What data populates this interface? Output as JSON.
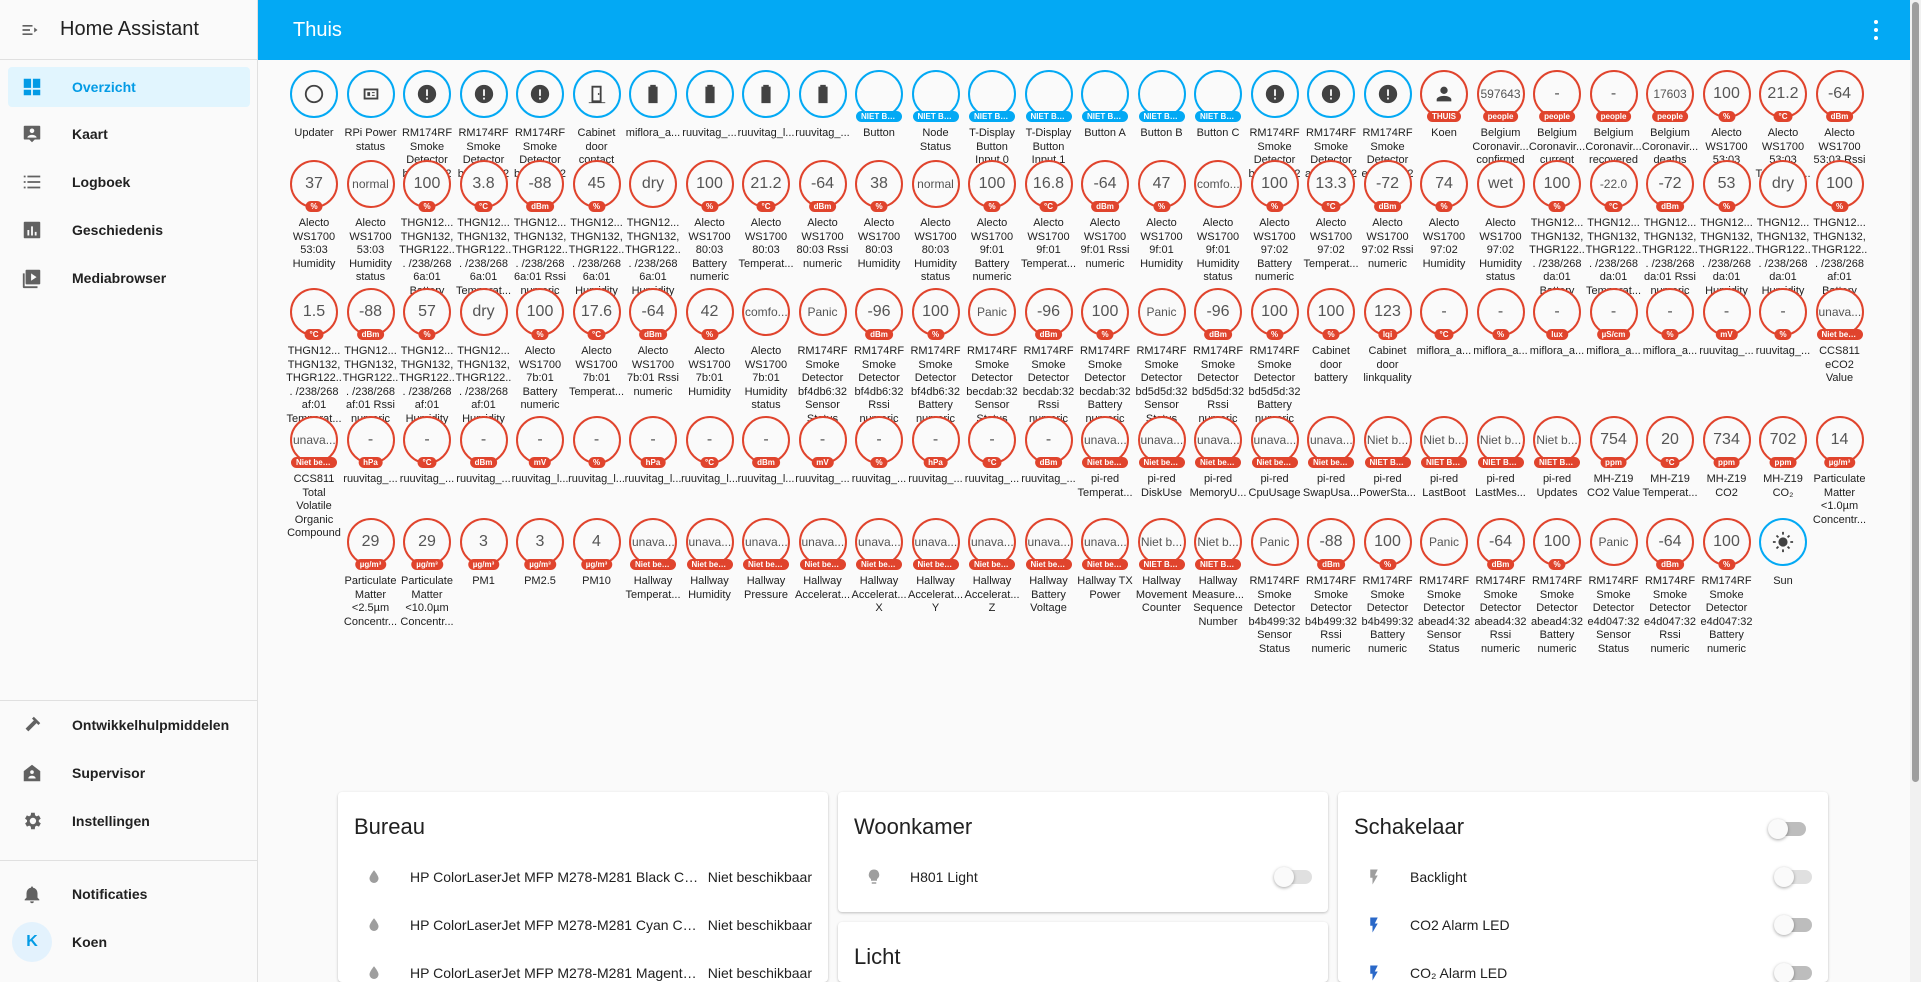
{
  "app": {
    "title": "Home Assistant"
  },
  "topbar": {
    "title": "Thuis"
  },
  "sidebar": {
    "items": [
      {
        "label": "Overzicht",
        "icon": "dashboard-icon"
      },
      {
        "label": "Kaart",
        "icon": "map-icon"
      },
      {
        "label": "Logboek",
        "icon": "logbook-icon"
      },
      {
        "label": "Geschiedenis",
        "icon": "history-chart-icon"
      },
      {
        "label": "Mediabrowser",
        "icon": "media-icon"
      }
    ],
    "bottom_items": [
      {
        "label": "Ontwikkelhulpmiddelen",
        "icon": "hammer-icon"
      },
      {
        "label": "Supervisor",
        "icon": "supervisor-icon"
      },
      {
        "label": "Instellingen",
        "icon": "gear-icon"
      }
    ],
    "notifications": "Notificaties",
    "user": {
      "name": "Koen",
      "initial": "K"
    }
  },
  "badges": [
    [
      {
        "v": "",
        "icon": "circle",
        "tag": "",
        "name": "Updater",
        "c": "blue"
      },
      {
        "v": "",
        "icon": "chip",
        "tag": "",
        "name": "RPi Power status",
        "c": "blue"
      },
      {
        "v": "",
        "icon": "alert",
        "tag": "",
        "name": "RM174RF Smoke Detector bf4db6:32",
        "c": "blue"
      },
      {
        "v": "",
        "icon": "alert",
        "tag": "",
        "name": "RM174RF Smoke Detector becdab:32",
        "c": "blue"
      },
      {
        "v": "",
        "icon": "alert",
        "tag": "",
        "name": "RM174RF Smoke Detector bd5d5d:32",
        "c": "blue"
      },
      {
        "v": "",
        "icon": "door",
        "tag": "",
        "name": "Cabinet door contact",
        "c": "blue"
      },
      {
        "v": "",
        "icon": "battery",
        "tag": "",
        "name": "miflora_a...",
        "c": "blue"
      },
      {
        "v": "",
        "icon": "battery",
        "tag": "",
        "name": "ruuvitag_...",
        "c": "blue"
      },
      {
        "v": "",
        "icon": "battery",
        "tag": "",
        "name": "ruuvitag_l...",
        "c": "blue"
      },
      {
        "v": "",
        "icon": "battery",
        "tag": "",
        "name": "ruuvitag_...",
        "c": "blue"
      },
      {
        "v": "",
        "icon": "",
        "tag": "NIET BE...",
        "name": "Button",
        "c": "blue"
      },
      {
        "v": "",
        "icon": "",
        "tag": "NIET BE...",
        "name": "Node Status",
        "c": "blue"
      },
      {
        "v": "",
        "icon": "",
        "tag": "NIET BE...",
        "name": "T-Display Button Input 0",
        "c": "blue"
      },
      {
        "v": "",
        "icon": "",
        "tag": "NIET BE...",
        "name": "T-Display Button Input 1",
        "c": "blue"
      },
      {
        "v": "",
        "icon": "",
        "tag": "NIET BE...",
        "name": "Button A",
        "c": "blue"
      },
      {
        "v": "",
        "icon": "",
        "tag": "NIET BE...",
        "name": "Button B",
        "c": "blue"
      },
      {
        "v": "",
        "icon": "",
        "tag": "NIET BE...",
        "name": "Button C",
        "c": "blue"
      },
      {
        "v": "",
        "icon": "alert",
        "tag": "",
        "name": "RM174RF Smoke Detector b4b499:32",
        "c": "blue"
      },
      {
        "v": "",
        "icon": "alert",
        "tag": "",
        "name": "RM174RF Smoke Detector abead4:32",
        "c": "blue"
      },
      {
        "v": "",
        "icon": "alert",
        "tag": "",
        "name": "RM174RF Smoke Detector e4d047:32",
        "c": "blue"
      },
      {
        "v": "",
        "icon": "person",
        "tag": "THUIS",
        "name": "Koen",
        "c": "red"
      },
      {
        "v": "597643",
        "icon": "",
        "tag": "people",
        "name": "Belgium Coronavir... confirmed",
        "c": "red",
        "sm": true
      },
      {
        "v": "-",
        "icon": "",
        "tag": "people",
        "name": "Belgium Coronavir... current",
        "c": "red"
      },
      {
        "v": "-",
        "icon": "",
        "tag": "people",
        "name": "Belgium Coronavir... recovered",
        "c": "red"
      },
      {
        "v": "17603",
        "icon": "",
        "tag": "people",
        "name": "Belgium Coronavir... deaths",
        "c": "red",
        "sm": true
      },
      {
        "v": "100",
        "icon": "",
        "tag": "%",
        "name": "Alecto WS1700 53:03 Battery numeric",
        "c": "red"
      },
      {
        "v": "21.2",
        "icon": "",
        "tag": "°C",
        "name": "Alecto WS1700 53:03 Temperat...",
        "c": "red"
      },
      {
        "v": "-64",
        "icon": "",
        "tag": "dBm",
        "name": "Alecto WS1700 53:03 Rssi numeric",
        "c": "red"
      }
    ],
    [
      {
        "v": "37",
        "tag": "%",
        "name": "Alecto WS1700 53:03 Humidity"
      },
      {
        "v": "normal",
        "tag": "",
        "name": "Alecto WS1700 53:03 Humidity status",
        "sm": true
      },
      {
        "v": "100",
        "tag": "%",
        "name": "THGN12... THGN132, THGR122... /238/268 6a:01 Battery numeric"
      },
      {
        "v": "3.8",
        "tag": "°C",
        "name": "THGN12... THGN132, THGR122... /238/268 6a:01 Temperat..."
      },
      {
        "v": "-88",
        "tag": "dBm",
        "name": "THGN12... THGN132, THGR122... /238/268 6a:01 Rssi numeric"
      },
      {
        "v": "45",
        "tag": "%",
        "name": "THGN12... THGN132, THGR122... /238/268 6a:01 Humidity"
      },
      {
        "v": "dry",
        "tag": "",
        "name": "THGN12... THGN132, THGR122... /238/268 6a:01 Humidity status"
      },
      {
        "v": "100",
        "tag": "%",
        "name": "Alecto WS1700 80:03 Battery numeric"
      },
      {
        "v": "21.2",
        "tag": "°C",
        "name": "Alecto WS1700 80:03 Temperat..."
      },
      {
        "v": "-64",
        "tag": "dBm",
        "name": "Alecto WS1700 80:03 Rssi numeric"
      },
      {
        "v": "38",
        "tag": "%",
        "name": "Alecto WS1700 80:03 Humidity"
      },
      {
        "v": "normal",
        "tag": "",
        "name": "Alecto WS1700 80:03 Humidity status",
        "sm": true
      },
      {
        "v": "100",
        "tag": "%",
        "name": "Alecto WS1700 9f:01 Battery numeric"
      },
      {
        "v": "16.8",
        "tag": "°C",
        "name": "Alecto WS1700 9f:01 Temperat..."
      },
      {
        "v": "-64",
        "tag": "dBm",
        "name": "Alecto WS1700 9f:01 Rssi numeric"
      },
      {
        "v": "47",
        "tag": "%",
        "name": "Alecto WS1700 9f:01 Humidity"
      },
      {
        "v": "comfo...",
        "tag": "",
        "name": "Alecto WS1700 9f:01 Humidity status",
        "sm": true
      },
      {
        "v": "100",
        "tag": "%",
        "name": "Alecto WS1700 97:02 Battery numeric"
      },
      {
        "v": "13.3",
        "tag": "°C",
        "name": "Alecto WS1700 97:02 Temperat..."
      },
      {
        "v": "-72",
        "tag": "dBm",
        "name": "Alecto WS1700 97:02 Rssi numeric"
      },
      {
        "v": "74",
        "tag": "%",
        "name": "Alecto WS1700 97:02 Humidity"
      },
      {
        "v": "wet",
        "tag": "",
        "name": "Alecto WS1700 97:02 Humidity status"
      },
      {
        "v": "100",
        "tag": "%",
        "name": "THGN12... THGN132, THGR122... /238/268 da:01 Battery numeric"
      },
      {
        "v": "-22.0",
        "tag": "°C",
        "name": "THGN12... THGN132, THGR122... /238/268 da:01 Temperat...",
        "sm": true
      },
      {
        "v": "-72",
        "tag": "dBm",
        "name": "THGN12... THGN132, THGR122... /238/268 da:01 Rssi numeric"
      },
      {
        "v": "53",
        "tag": "%",
        "name": "THGN12... THGN132, THGR122... /238/268 da:01 Humidity"
      },
      {
        "v": "dry",
        "tag": "",
        "name": "THGN12... THGN132, THGR122... /238/268 da:01 Humidity status"
      },
      {
        "v": "100",
        "tag": "%",
        "name": "THGN12... THGN132, THGR122... /238/268 af:01 Battery numeric"
      }
    ],
    [
      {
        "v": "1.5",
        "tag": "°C",
        "name": "THGN12... THGN132, THGR122... /238/268 af:01 Temperat..."
      },
      {
        "v": "-88",
        "tag": "dBm",
        "name": "THGN12... THGN132, THGR122... /238/268 af:01 Rssi numeric"
      },
      {
        "v": "57",
        "tag": "%",
        "name": "THGN12... THGN132, THGR122... /238/268 af:01 Humidity"
      },
      {
        "v": "dry",
        "tag": "",
        "name": "THGN12... THGN132, THGR122... /238/268 af:01 Humidity status"
      },
      {
        "v": "100",
        "tag": "%",
        "name": "Alecto WS1700 7b:01 Battery numeric"
      },
      {
        "v": "17.6",
        "tag": "°C",
        "name": "Alecto WS1700 7b:01 Temperat..."
      },
      {
        "v": "-64",
        "tag": "dBm",
        "name": "Alecto WS1700 7b:01 Rssi numeric"
      },
      {
        "v": "42",
        "tag": "%",
        "name": "Alecto WS1700 7b:01 Humidity"
      },
      {
        "v": "comfo...",
        "tag": "",
        "name": "Alecto WS1700 7b:01 Humidity status",
        "sm": true
      },
      {
        "v": "Panic",
        "tag": "",
        "name": "RM174RF Smoke Detector bf4db6:32 Sensor Status",
        "sm": true
      },
      {
        "v": "-96",
        "tag": "dBm",
        "name": "RM174RF Smoke Detector bf4db6:32 Rssi numeric"
      },
      {
        "v": "100",
        "tag": "%",
        "name": "RM174RF Smoke Detector bf4db6:32 Battery numeric"
      },
      {
        "v": "Panic",
        "tag": "",
        "name": "RM174RF Smoke Detector becdab:32 Sensor Status",
        "sm": true
      },
      {
        "v": "-96",
        "tag": "dBm",
        "name": "RM174RF Smoke Detector becdab:32 Rssi numeric"
      },
      {
        "v": "100",
        "tag": "%",
        "name": "RM174RF Smoke Detector becdab:32 Battery numeric"
      },
      {
        "v": "Panic",
        "tag": "",
        "name": "RM174RF Smoke Detector bd5d5d:32 Sensor Status",
        "sm": true
      },
      {
        "v": "-96",
        "tag": "dBm",
        "name": "RM174RF Smoke Detector bd5d5d:32 Rssi numeric"
      },
      {
        "v": "100",
        "tag": "%",
        "name": "RM174RF Smoke Detector bd5d5d:32 Battery numeric"
      },
      {
        "v": "100",
        "tag": "%",
        "name": "Cabinet door battery"
      },
      {
        "v": "123",
        "tag": "lqi",
        "name": "Cabinet door linkquality"
      },
      {
        "v": "-",
        "tag": "°C",
        "name": "miflora_a..."
      },
      {
        "v": "-",
        "tag": "%",
        "name": "miflora_a..."
      },
      {
        "v": "-",
        "tag": "lux",
        "name": "miflora_a..."
      },
      {
        "v": "-",
        "tag": "µS/cm",
        "name": "miflora_a..."
      },
      {
        "v": "-",
        "tag": "%",
        "name": "miflora_a..."
      },
      {
        "v": "-",
        "tag": "mV",
        "name": "ruuvitag_..."
      },
      {
        "v": "-",
        "tag": "%",
        "name": "ruuvitag_..."
      },
      {
        "v": "unava...",
        "tag": "Niet bes...",
        "name": "CCS811 eCO2 Value",
        "sm": true
      }
    ],
    [
      {
        "v": "unava...",
        "tag": "Niet bes...",
        "name": "CCS811 Total Volatile Organic Compound",
        "sm": true
      },
      {
        "v": "-",
        "tag": "hPa",
        "name": "ruuvitag_..."
      },
      {
        "v": "-",
        "tag": "°C",
        "name": "ruuvitag_..."
      },
      {
        "v": "-",
        "tag": "dBm",
        "name": "ruuvitag_..."
      },
      {
        "v": "-",
        "tag": "mV",
        "name": "ruuvitag_l..."
      },
      {
        "v": "-",
        "tag": "%",
        "name": "ruuvitag_l..."
      },
      {
        "v": "-",
        "tag": "hPa",
        "name": "ruuvitag_l..."
      },
      {
        "v": "-",
        "tag": "°C",
        "name": "ruuvitag_l..."
      },
      {
        "v": "-",
        "tag": "dBm",
        "name": "ruuvitag_l..."
      },
      {
        "v": "-",
        "tag": "mV",
        "name": "ruuvitag_..."
      },
      {
        "v": "-",
        "tag": "%",
        "name": "ruuvitag_..."
      },
      {
        "v": "-",
        "tag": "hPa",
        "name": "ruuvitag_..."
      },
      {
        "v": "-",
        "tag": "°C",
        "name": "ruuvitag_..."
      },
      {
        "v": "-",
        "tag": "dBm",
        "name": "ruuvitag_..."
      },
      {
        "v": "unava...",
        "tag": "Niet bes...",
        "name": "pi-red Temperat...",
        "sm": true
      },
      {
        "v": "unava...",
        "tag": "Niet bes...",
        "name": "pi-red DiskUse",
        "sm": true
      },
      {
        "v": "unava...",
        "tag": "Niet bes...",
        "name": "pi-red MemoryU...",
        "sm": true
      },
      {
        "v": "unava...",
        "tag": "Niet bes...",
        "name": "pi-red CpuUsage",
        "sm": true
      },
      {
        "v": "unava...",
        "tag": "Niet bes...",
        "name": "pi-red SwapUsa...",
        "sm": true
      },
      {
        "v": "Niet b...",
        "tag": "NIET BE...",
        "name": "pi-red PowerSta...",
        "sm": true
      },
      {
        "v": "Niet b...",
        "tag": "NIET BE...",
        "name": "pi-red LastBoot",
        "sm": true
      },
      {
        "v": "Niet b...",
        "tag": "NIET BE...",
        "name": "pi-red LastMes...",
        "sm": true
      },
      {
        "v": "Niet b...",
        "tag": "NIET BE...",
        "name": "pi-red Updates",
        "sm": true
      },
      {
        "v": "754",
        "tag": "ppm",
        "name": "MH-Z19 CO2 Value"
      },
      {
        "v": "20",
        "tag": "°C",
        "name": "MH-Z19 Temperat..."
      },
      {
        "v": "734",
        "tag": "ppm",
        "name": "MH-Z19 CO2"
      },
      {
        "v": "702",
        "tag": "ppm",
        "name": "MH-Z19 CO₂"
      },
      {
        "v": "14",
        "tag": "µg/m³",
        "name": "Particulate Matter <1.0µm Concentr..."
      }
    ],
    [
      {
        "v": "29",
        "tag": "µg/m³",
        "name": "Particulate Matter <2.5µm Concentr..."
      },
      {
        "v": "29",
        "tag": "µg/m³",
        "name": "Particulate Matter <10.0µm Concentr..."
      },
      {
        "v": "3",
        "tag": "µg/m³",
        "name": "PM1"
      },
      {
        "v": "3",
        "tag": "µg/m³",
        "name": "PM2.5"
      },
      {
        "v": "4",
        "tag": "µg/m³",
        "name": "PM10"
      },
      {
        "v": "unava...",
        "tag": "Niet bes...",
        "name": "Hallway Temperat...",
        "sm": true
      },
      {
        "v": "unava...",
        "tag": "Niet bes...",
        "name": "Hallway Humidity",
        "sm": true
      },
      {
        "v": "unava...",
        "tag": "Niet bes...",
        "name": "Hallway Pressure",
        "sm": true
      },
      {
        "v": "unava...",
        "tag": "Niet bes...",
        "name": "Hallway Accelerat...",
        "sm": true
      },
      {
        "v": "unava...",
        "tag": "Niet bes...",
        "name": "Hallway Accelerat... X",
        "sm": true
      },
      {
        "v": "unava...",
        "tag": "Niet bes...",
        "name": "Hallway Accelerat... Y",
        "sm": true
      },
      {
        "v": "unava...",
        "tag": "Niet bes...",
        "name": "Hallway Accelerat... Z",
        "sm": true
      },
      {
        "v": "unava...",
        "tag": "Niet bes...",
        "name": "Hallway Battery Voltage",
        "sm": true
      },
      {
        "v": "unava...",
        "tag": "Niet bes...",
        "name": "Hallway TX Power",
        "sm": true
      },
      {
        "v": "Niet b...",
        "tag": "NIET BE...",
        "name": "Hallway Movement Counter",
        "sm": true
      },
      {
        "v": "Niet b...",
        "tag": "NIET BE...",
        "name": "Hallway Measure... Sequence Number",
        "sm": true
      },
      {
        "v": "Panic",
        "tag": "",
        "name": "RM174RF Smoke Detector b4b499:32 Sensor Status",
        "sm": true
      },
      {
        "v": "-88",
        "tag": "dBm",
        "name": "RM174RF Smoke Detector b4b499:32 Rssi numeric"
      },
      {
        "v": "100",
        "tag": "%",
        "name": "RM174RF Smoke Detector b4b499:32 Battery numeric"
      },
      {
        "v": "Panic",
        "tag": "",
        "name": "RM174RF Smoke Detector abead4:32 Sensor Status",
        "sm": true
      },
      {
        "v": "-64",
        "tag": "dBm",
        "name": "RM174RF Smoke Detector abead4:32 Rssi numeric"
      },
      {
        "v": "100",
        "tag": "%",
        "name": "RM174RF Smoke Detector abead4:32 Battery numeric"
      },
      {
        "v": "Panic",
        "tag": "",
        "name": "RM174RF Smoke Detector e4d047:32 Sensor Status",
        "sm": true
      },
      {
        "v": "-64",
        "tag": "dBm",
        "name": "RM174RF Smoke Detector e4d047:32 Rssi numeric"
      },
      {
        "v": "100",
        "tag": "%",
        "name": "RM174RF Smoke Detector e4d047:32 Battery numeric"
      },
      {
        "v": "",
        "icon": "sun",
        "tag": "",
        "name": "Sun",
        "c": "blue"
      }
    ]
  ],
  "cards": {
    "bureau": {
      "title": "Bureau",
      "rows": [
        {
          "name": "HP ColorLaserJet MFP M278-M281 Black Cart...",
          "state": "Niet beschikbaar"
        },
        {
          "name": "HP ColorLaserJet MFP M278-M281 Cyan Cart...",
          "state": "Niet beschikbaar"
        },
        {
          "name": "HP ColorLaserJet MFP M278-M281 Magenta ...",
          "state": "Niet beschikbaar"
        }
      ]
    },
    "woonkamer": {
      "title": "Woonkamer",
      "rows": [
        {
          "name": "H801 Light"
        }
      ]
    },
    "licht": {
      "title": "Licht"
    },
    "schakelaar": {
      "title": "Schakelaar",
      "rows": [
        {
          "name": "Backlight"
        },
        {
          "name": "CO2 Alarm LED"
        },
        {
          "name": "CO₂ Alarm LED"
        }
      ]
    }
  },
  "colors": {
    "accent": "#03a9f4",
    "badge_red": "#e0442d",
    "sidebar_active_bg": "#e1f5fe"
  }
}
